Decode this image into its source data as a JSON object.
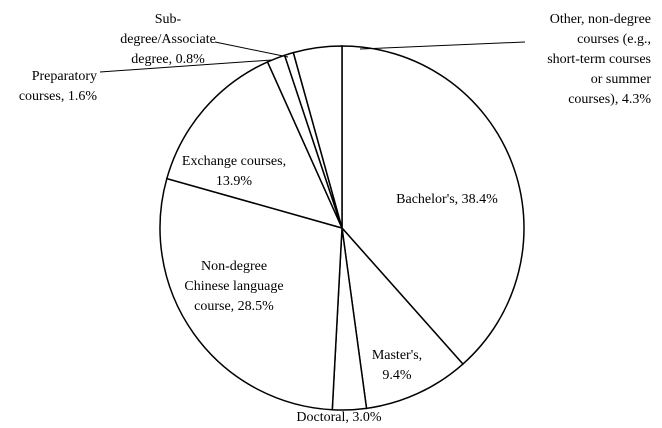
{
  "chart_data": {
    "type": "pie",
    "labels": [
      [
        "Bachelor's, 38.4%"
      ],
      [
        "Master's,",
        "9.4%"
      ],
      [
        "Doctoral, 3.0%"
      ],
      [
        "Non-degree",
        "Chinese language",
        "course, 28.5%"
      ],
      [
        "Exchange courses,",
        "13.9%"
      ],
      [
        "Preparatory",
        "courses, 1.6%"
      ],
      [
        "Sub-",
        "degree/Associate",
        "degree, 0.8%"
      ],
      [
        "Other, non-degree",
        "courses (e.g.,",
        "short-term courses",
        "or summer",
        "courses), 4.3%"
      ]
    ],
    "values": [
      38.4,
      9.4,
      3.0,
      28.5,
      13.9,
      1.6,
      0.8,
      4.3
    ],
    "color": "#ffffff",
    "edgecolor": "#000000"
  }
}
